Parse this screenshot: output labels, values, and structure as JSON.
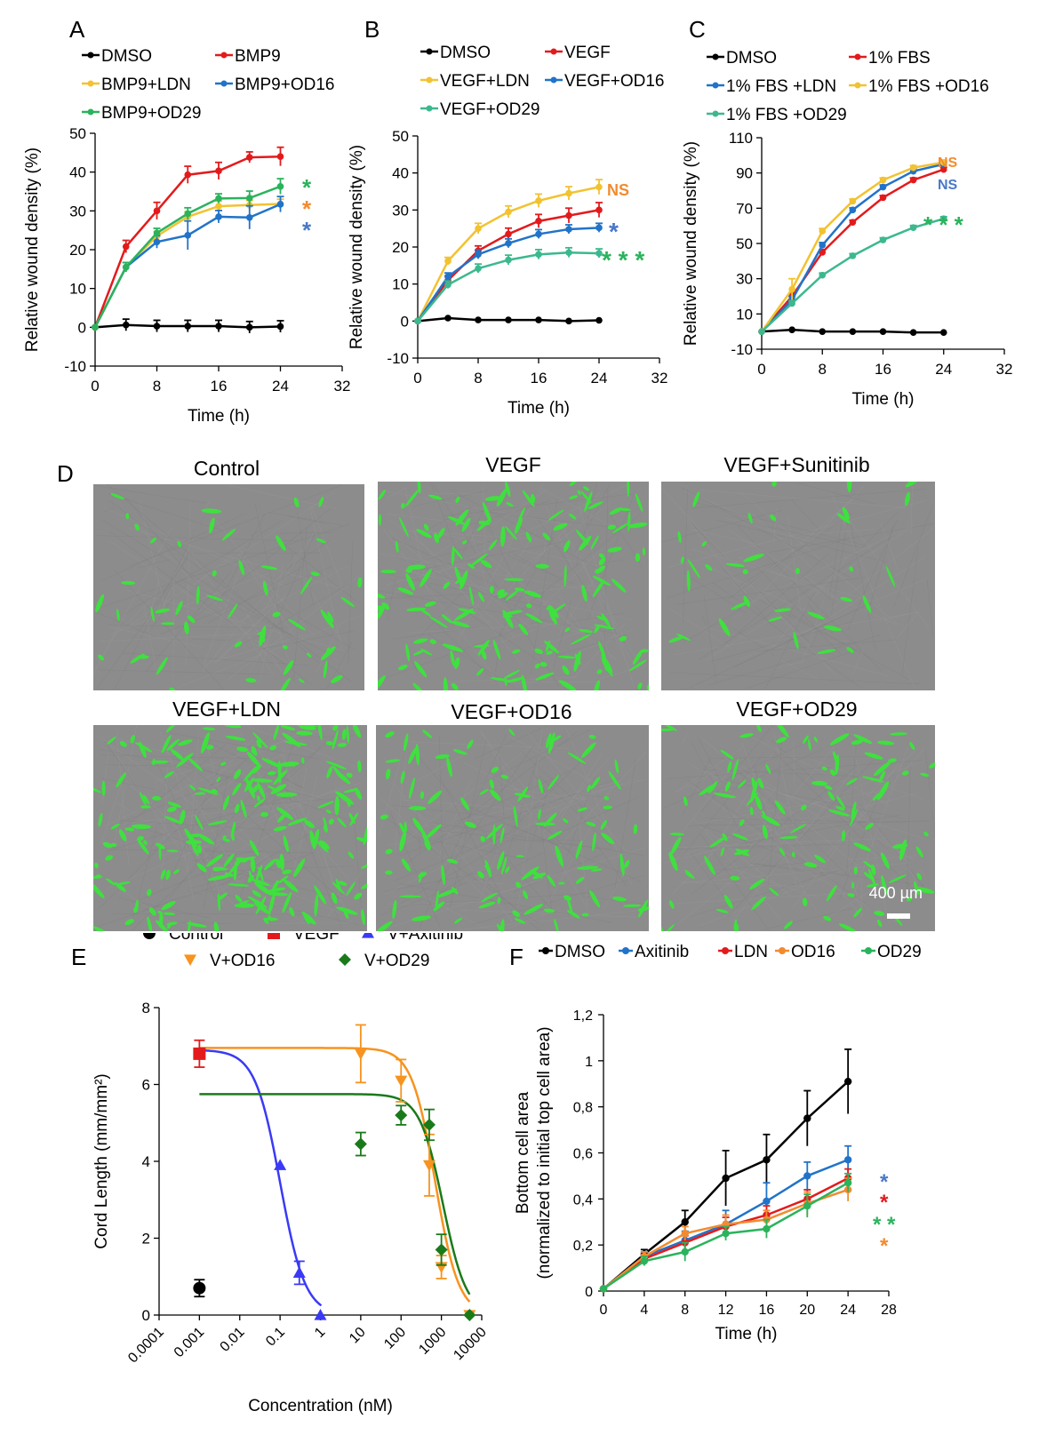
{
  "panels": {
    "A": "A",
    "B": "B",
    "C": "C",
    "D": "D",
    "E": "E",
    "F": "F"
  },
  "colors": {
    "black": "#000000",
    "red": "#e31a1c",
    "yellow": "#f2c230",
    "blue": "#2173c9",
    "green": "#2bb35c",
    "teal": "#3cb88f",
    "orange": "#f28b2e",
    "sig_blue": "#4a78c8",
    "sig_orange": "#f28b2e",
    "sig_green": "#2bb35c",
    "e_blue": "#3a3af5",
    "e_orange": "#f7931e",
    "e_green": "#1a7a1a"
  },
  "chart_data": [
    {
      "id": "A",
      "type": "line",
      "xlabel": "Time (h)",
      "ylabel": "Relative wound density (%)",
      "xlim": [
        0,
        32
      ],
      "ylim": [
        -10,
        50
      ],
      "xticks": [
        0,
        8,
        16,
        24,
        32
      ],
      "yticks": [
        -10,
        0,
        10,
        20,
        30,
        40,
        50
      ],
      "x": [
        0,
        4,
        8,
        12,
        16,
        20,
        24
      ],
      "series": [
        {
          "name": "DMSO",
          "color": "#000000",
          "values": [
            0,
            0.6,
            0.3,
            0.3,
            0.3,
            0,
            0.2
          ],
          "err": [
            0,
            1.5,
            1.5,
            1.5,
            1.5,
            1.5,
            1.5
          ]
        },
        {
          "name": "BMP9",
          "color": "#e31a1c",
          "values": [
            0,
            20.8,
            30,
            39.3,
            40.3,
            43.8,
            44
          ],
          "err": [
            0,
            1.6,
            2.2,
            2.2,
            2.2,
            1.4,
            2.4
          ]
        },
        {
          "name": "BMP9+LDN",
          "color": "#f2c230",
          "values": [
            0,
            15.5,
            23.5,
            28.5,
            31.2,
            31.5,
            31.8
          ],
          "err": [
            0,
            1.2,
            1.2,
            1.3,
            1.3,
            1.2,
            1.2
          ]
        },
        {
          "name": "BMP9+OD16",
          "color": "#2173c9",
          "values": [
            0,
            15.5,
            22,
            23.7,
            28.5,
            28.3,
            31.7
          ],
          "err": [
            0,
            1.2,
            1.6,
            3.7,
            1.6,
            3,
            2
          ]
        },
        {
          "name": "BMP9+OD29",
          "color": "#2bb35c",
          "values": [
            0,
            15.5,
            24.3,
            29.3,
            33.2,
            33.3,
            36.3
          ],
          "err": [
            0,
            1.2,
            1.2,
            1.5,
            1.2,
            1.8,
            2
          ]
        }
      ],
      "legend_cols": 2,
      "sig": [
        {
          "text": "*",
          "color": "#2bb35c"
        },
        {
          "text": "*",
          "color": "#f28b2e"
        },
        {
          "text": "*",
          "color": "#4a78c8"
        }
      ]
    },
    {
      "id": "B",
      "type": "line",
      "xlabel": "Time (h)",
      "ylabel": "Relative wound density (%)",
      "xlim": [
        0,
        32
      ],
      "ylim": [
        -10,
        50
      ],
      "xticks": [
        0,
        8,
        16,
        24,
        32
      ],
      "yticks": [
        -10,
        0,
        10,
        20,
        30,
        40,
        50
      ],
      "x": [
        0,
        4,
        8,
        12,
        16,
        20,
        24
      ],
      "series": [
        {
          "name": "DMSO",
          "color": "#000000",
          "values": [
            0,
            0.8,
            0.3,
            0.3,
            0.3,
            0,
            0.2
          ],
          "err": [
            0,
            0,
            0,
            0,
            0,
            0,
            0
          ]
        },
        {
          "name": "VEGF",
          "color": "#e31a1c",
          "values": [
            0,
            11,
            19,
            23.5,
            27,
            28.5,
            30
          ],
          "err": [
            0,
            1.2,
            1.3,
            1.6,
            1.8,
            2,
            2
          ]
        },
        {
          "name": "VEGF+LDN",
          "color": "#f2c230",
          "values": [
            0,
            16.2,
            25,
            29.5,
            32.5,
            34.5,
            36.2
          ],
          "err": [
            0,
            1,
            1.4,
            1.6,
            1.8,
            1.8,
            2
          ]
        },
        {
          "name": "VEGF+OD16",
          "color": "#2173c9",
          "values": [
            0,
            12,
            18,
            21,
            23.5,
            24.8,
            25.2
          ],
          "err": [
            0,
            1,
            1.2,
            1.2,
            1.2,
            1.2,
            1.2
          ]
        },
        {
          "name": "VEGF+OD29",
          "color": "#3cb88f",
          "values": [
            0,
            9.8,
            14.2,
            16.5,
            18,
            18.5,
            18.3
          ],
          "err": [
            0,
            1,
            1.2,
            1.3,
            1.3,
            1.3,
            1.2
          ]
        }
      ],
      "legend_cols": 2,
      "sig": [
        {
          "text": "NS",
          "color": "#f28b2e"
        },
        {
          "text": "*",
          "color": "#4a78c8"
        },
        {
          "text": "* * *",
          "color": "#2bb35c"
        }
      ]
    },
    {
      "id": "C",
      "type": "line",
      "xlabel": "Time (h)",
      "ylabel": "Relative wound density (%)",
      "xlim": [
        0,
        32
      ],
      "ylim": [
        -10,
        110
      ],
      "xticks": [
        0,
        8,
        16,
        24,
        32
      ],
      "yticks": [
        -10,
        10,
        30,
        50,
        70,
        90,
        110
      ],
      "x": [
        0,
        4,
        8,
        12,
        16,
        20,
        24
      ],
      "series": [
        {
          "name": "DMSO",
          "color": "#000000",
          "values": [
            0,
            1,
            0,
            0,
            0,
            -0.5,
            -0.5
          ],
          "err": [
            0,
            0,
            0,
            0,
            0,
            0,
            0
          ]
        },
        {
          "name": "1% FBS",
          "color": "#e31a1c",
          "values": [
            0,
            20,
            45,
            62,
            76,
            86,
            92
          ],
          "err": [
            0,
            2,
            1.5,
            1.2,
            1.2,
            1.2,
            1.2
          ]
        },
        {
          "name": "1% FBS +LDN",
          "color": "#2173c9",
          "values": [
            0,
            18,
            49,
            69,
            82,
            91,
            95
          ],
          "err": [
            0,
            2,
            1.5,
            1.2,
            1.2,
            1.2,
            1.2
          ]
        },
        {
          "name": "1% FBS +OD16",
          "color": "#f2c230",
          "values": [
            0,
            24,
            57,
            74,
            86,
            93,
            96
          ],
          "err": [
            0,
            6,
            1.5,
            1.2,
            1.2,
            1.2,
            1.2
          ]
        },
        {
          "name": "1% FBS +OD29",
          "color": "#3cb88f",
          "values": [
            0,
            16,
            32,
            43,
            52,
            59,
            64
          ],
          "err": [
            0,
            1.5,
            1.2,
            1.2,
            1.2,
            1.2,
            1.2
          ]
        }
      ],
      "legend_cols": 2,
      "sig": [
        {
          "text": "NS",
          "color": "#f28b2e"
        },
        {
          "text": "NS",
          "color": "#4a78c8"
        },
        {
          "text": "* * *",
          "color": "#2bb35c"
        }
      ]
    },
    {
      "id": "E",
      "type": "scatter",
      "xlabel": "Concentration (nM)",
      "ylabel": "Cord Length (mm/mm²)",
      "xscale": "log",
      "xlim": [
        0.0001,
        10000
      ],
      "ylim": [
        0,
        8
      ],
      "xticks": [
        "0.0001",
        "0.001",
        "0.01",
        "0.1",
        "1",
        "10",
        "100",
        "1000",
        "10000"
      ],
      "yticks": [
        0,
        2,
        4,
        6,
        8
      ],
      "series": [
        {
          "name": "Control",
          "color": "#000000",
          "marker": "circle",
          "points": [
            [
              0.001,
              0.7,
              0.22
            ]
          ]
        },
        {
          "name": "VEGF",
          "color": "#e31a1c",
          "marker": "square",
          "points": [
            [
              0.001,
              6.8,
              0.35
            ]
          ]
        },
        {
          "name": "V+Axitinib",
          "color": "#3a3af5",
          "marker": "triangle-up",
          "points": [
            [
              0.1,
              3.9,
              0
            ],
            [
              0.3,
              1.1,
              0.3
            ],
            [
              1,
              0,
              0
            ]
          ],
          "fit": {
            "top": 6.9,
            "ic50": 0.1,
            "hill": 1.4,
            "from": 0.001,
            "to": 1.05
          }
        },
        {
          "name": "V+OD16",
          "color": "#f7931e",
          "marker": "triangle-down",
          "points": [
            [
              10,
              6.8,
              0.75
            ],
            [
              100,
              6.1,
              0.55
            ],
            [
              500,
              3.9,
              0.8
            ],
            [
              1000,
              1.25,
              0.3
            ],
            [
              5000,
              0,
              0
            ]
          ],
          "fit": {
            "top": 6.95,
            "ic50": 700,
            "hill": 1.5,
            "from": 0.001,
            "to": 5000
          }
        },
        {
          "name": "V+OD29",
          "color": "#1a7a1a",
          "marker": "diamond",
          "points": [
            [
              10,
              4.45,
              0.3
            ],
            [
              100,
              5.2,
              0.25
            ],
            [
              500,
              4.95,
              0.4
            ],
            [
              1000,
              1.7,
              0.4
            ],
            [
              5000,
              0,
              0
            ]
          ],
          "fit": {
            "top": 5.75,
            "ic50": 1100,
            "hill": 1.5,
            "from": 0.001,
            "to": 5000
          }
        }
      ]
    },
    {
      "id": "F",
      "type": "line",
      "xlabel": "Time (h)",
      "ylabel": "Bottom cell area",
      "ylabel2": "(normalized to initial top cell area)",
      "xlim": [
        0,
        28
      ],
      "ylim": [
        0,
        1.2
      ],
      "xticks": [
        "0",
        "4",
        "8",
        "12",
        "16",
        "20",
        "24",
        "28"
      ],
      "yticks": [
        "0",
        "0,2",
        "0,4",
        "0,6",
        "0,8",
        "1",
        "1,2"
      ],
      "x": [
        0,
        4,
        8,
        12,
        16,
        20,
        24
      ],
      "series": [
        {
          "name": "DMSO",
          "color": "#000000",
          "values": [
            0.01,
            0.16,
            0.3,
            0.49,
            0.57,
            0.75,
            0.91
          ],
          "err": [
            0,
            0.02,
            0.05,
            0.12,
            0.11,
            0.12,
            0.14
          ]
        },
        {
          "name": "Axitinib",
          "color": "#2173c9",
          "values": [
            0.01,
            0.15,
            0.22,
            0.29,
            0.39,
            0.5,
            0.57
          ],
          "err": [
            0,
            0.02,
            0.04,
            0.06,
            0.08,
            0.06,
            0.06
          ]
        },
        {
          "name": "LDN",
          "color": "#e31a1c",
          "values": [
            0.01,
            0.14,
            0.21,
            0.28,
            0.33,
            0.4,
            0.49
          ],
          "err": [
            0,
            0.02,
            0.03,
            0.04,
            0.04,
            0.04,
            0.04
          ]
        },
        {
          "name": "OD16",
          "color": "#f28b2e",
          "values": [
            0.01,
            0.15,
            0.25,
            0.29,
            0.31,
            0.38,
            0.44
          ],
          "err": [
            0,
            0.02,
            0.03,
            0.04,
            0.04,
            0.05,
            0.05
          ]
        },
        {
          "name": "OD29",
          "color": "#2bb35c",
          "values": [
            0.01,
            0.13,
            0.17,
            0.25,
            0.27,
            0.37,
            0.47
          ],
          "err": [
            0,
            0.02,
            0.04,
            0.03,
            0.04,
            0.05,
            0.04
          ]
        }
      ],
      "legend_cols": 5,
      "sig": [
        {
          "text": "*",
          "color": "#4a78c8"
        },
        {
          "text": "*",
          "color": "#e31a1c"
        },
        {
          "text": "* *",
          "color": "#2bb35c"
        },
        {
          "text": "*",
          "color": "#f28b2e"
        }
      ]
    }
  ],
  "micrographs": {
    "titles": [
      "Control",
      "VEGF",
      "VEGF+Sunitinib",
      "VEGF+LDN",
      "VEGF+OD16",
      "VEGF+OD29"
    ],
    "density": [
      55,
      170,
      35,
      230,
      120,
      120
    ],
    "scale_bar": "400 µm"
  }
}
